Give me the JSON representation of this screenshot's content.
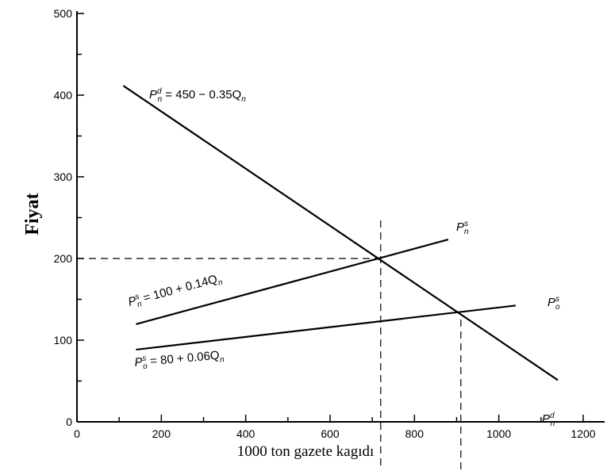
{
  "chart_data": {
    "type": "line",
    "ylabel": "Fiyat",
    "xlabel": "1000 ton gazete kagıdı",
    "xlim": [
      0,
      1250
    ],
    "ylim": [
      0,
      500
    ],
    "x_ticks": [
      0,
      200,
      400,
      600,
      800,
      1000,
      1200
    ],
    "y_ticks": [
      0,
      100,
      200,
      300,
      400,
      500
    ],
    "series": [
      {
        "name": "demand",
        "equation": {
          "lead": "P",
          "sup": "d",
          "sub": "n",
          "rest": " = 450 − 0.35Q",
          "qsub": "n"
        },
        "end_label": {
          "lead": "P",
          "sup": "d",
          "sub": "n"
        },
        "x": [
          110,
          1140
        ],
        "y": [
          411.5,
          51
        ]
      },
      {
        "name": "new-supply",
        "equation": {
          "lead": "P",
          "sup": "s",
          "sub": "n",
          "rest": " = 100 + 0.14Q",
          "qsub": "n"
        },
        "end_label": {
          "lead": "P",
          "sup": "s",
          "sub": "n"
        },
        "x": [
          140,
          880
        ],
        "y": [
          119.6,
          223.2
        ]
      },
      {
        "name": "old-supply",
        "equation": {
          "lead": "P",
          "sup": "s",
          "sub": "o",
          "rest": " = 80 + 0.06Q",
          "qsub": "n"
        },
        "end_label": {
          "lead": "P",
          "sup": "s",
          "sub": "o"
        },
        "x": [
          140,
          1040
        ],
        "y": [
          88.4,
          142.4
        ]
      }
    ],
    "reference_lines": [
      {
        "kind": "horizontal",
        "y": 200,
        "x_from": 0,
        "x_to": 720
      },
      {
        "kind": "vertical",
        "x": 720,
        "y_from": 200
      },
      {
        "kind": "vertical",
        "x": 910,
        "y_from": 135
      }
    ],
    "grid": false,
    "legend": "none"
  }
}
